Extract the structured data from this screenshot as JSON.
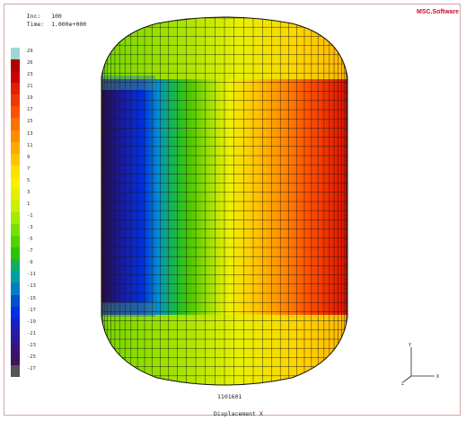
{
  "header": {
    "inc_label": "Inc:",
    "inc_value": "100",
    "time_label": "Time:",
    "time_value": "1.000e+000"
  },
  "logo": {
    "text": "MSC.Software",
    "color": "#c8102e"
  },
  "legend": {
    "ticks": [
      "29",
      "26",
      "23",
      "21",
      "19",
      "17",
      "15",
      "13",
      "11",
      "9",
      "7",
      "5",
      "3",
      "1",
      "-1",
      "-3",
      "-5",
      "-7",
      "-9",
      "-11",
      "-13",
      "-15",
      "-17",
      "-19",
      "-21",
      "-23",
      "-25",
      "-27"
    ],
    "colors": [
      "#9fd8d0",
      "#b00000",
      "#cc0000",
      "#e22000",
      "#f03800",
      "#f85400",
      "#fc7000",
      "#ff8c00",
      "#ffa800",
      "#ffc400",
      "#ffe000",
      "#f8f000",
      "#e0f000",
      "#c8f000",
      "#a0ec00",
      "#78e000",
      "#50d400",
      "#30c400",
      "#10b060",
      "#00a0a0",
      "#0080c0",
      "#0050d0",
      "#0030e0",
      "#1a20c0",
      "#2a1aa0",
      "#36167e",
      "#3e145e",
      "#555555"
    ]
  },
  "viewport": {
    "node_label": "1101601",
    "title": "Displacement X"
  },
  "triad": {
    "y_axis": "Y",
    "z_axis": "Z",
    "x_axis": "X"
  }
}
